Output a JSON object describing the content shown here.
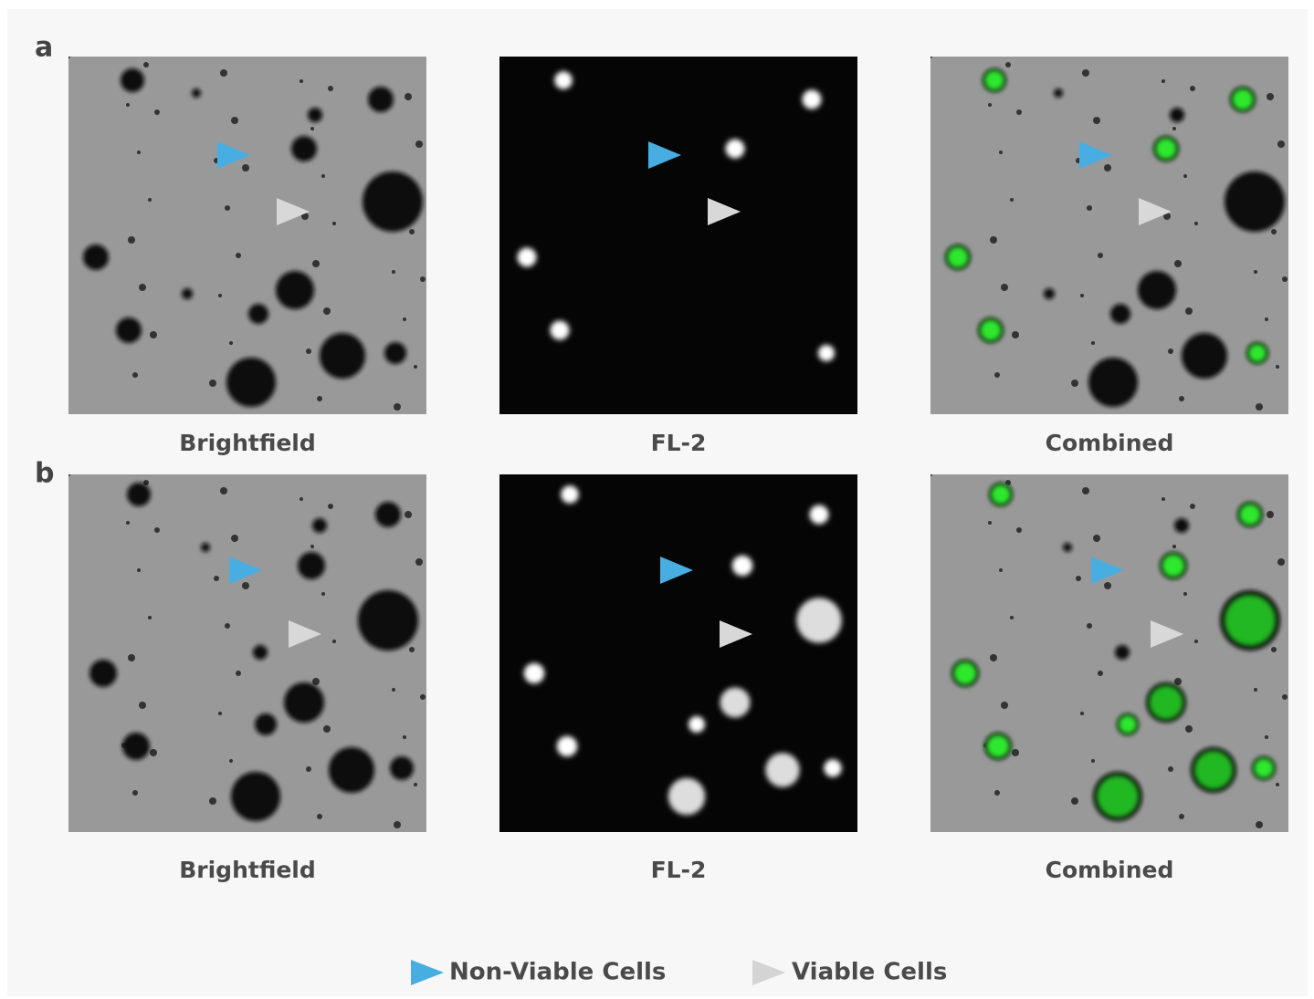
{
  "panels": [
    {
      "label": "a",
      "images": [
        {
          "caption": "Brightfield"
        },
        {
          "caption": "FL-2"
        },
        {
          "caption": "Combined"
        }
      ]
    },
    {
      "label": "b",
      "images": [
        {
          "caption": "Brightfield"
        },
        {
          "caption": "FL-2"
        },
        {
          "caption": "Combined"
        }
      ]
    }
  ],
  "legend": [
    {
      "label": "Non-Viable Cells"
    },
    {
      "label": "Viable Cells"
    }
  ]
}
